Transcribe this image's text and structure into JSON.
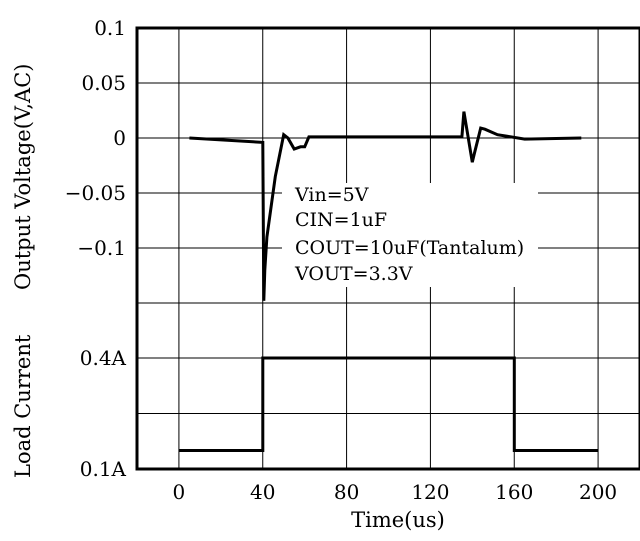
{
  "chart_data": {
    "type": "line",
    "xlabel": "Time(us)",
    "ylabel_top": "Output Voltage(V,AC)",
    "ylabel_bottom": "Load Current",
    "x_ticks": [
      "0",
      "40",
      "80",
      "120",
      "160",
      "200"
    ],
    "xlim": [
      -20,
      220
    ],
    "grid": true,
    "voltage": {
      "y_ticks": [
        "0.1",
        "0.05",
        "0",
        "−0.05",
        "−0.1"
      ],
      "ylim": [
        -0.15,
        0.1
      ],
      "x": [
        5,
        40,
        40.5,
        41,
        42,
        46,
        50,
        52,
        55,
        58,
        60,
        62,
        64,
        70,
        100,
        130,
        135,
        136,
        140,
        141,
        144,
        146,
        152,
        165,
        192
      ],
      "y": [
        0,
        -0.004,
        -0.148,
        -0.12,
        -0.09,
        -0.035,
        0.003,
        0,
        -0.01,
        -0.008,
        -0.008,
        0.001,
        0.001,
        0.001,
        0.001,
        0.001,
        0.001,
        0.024,
        -0.022,
        -0.014,
        0.009,
        0.008,
        0.003,
        -0.001,
        0
      ]
    },
    "current": {
      "y_ticks": [
        "0.4A",
        "0.1A"
      ],
      "x": [
        0,
        40,
        40,
        160,
        160,
        200
      ],
      "y": [
        0.15,
        0.15,
        0.4,
        0.4,
        0.15,
        0.15
      ]
    },
    "annotations": [
      "Vin=5V",
      "CIN=1uF",
      "COUT=10uF(Tantalum)",
      "VOUT=3.3V"
    ]
  }
}
